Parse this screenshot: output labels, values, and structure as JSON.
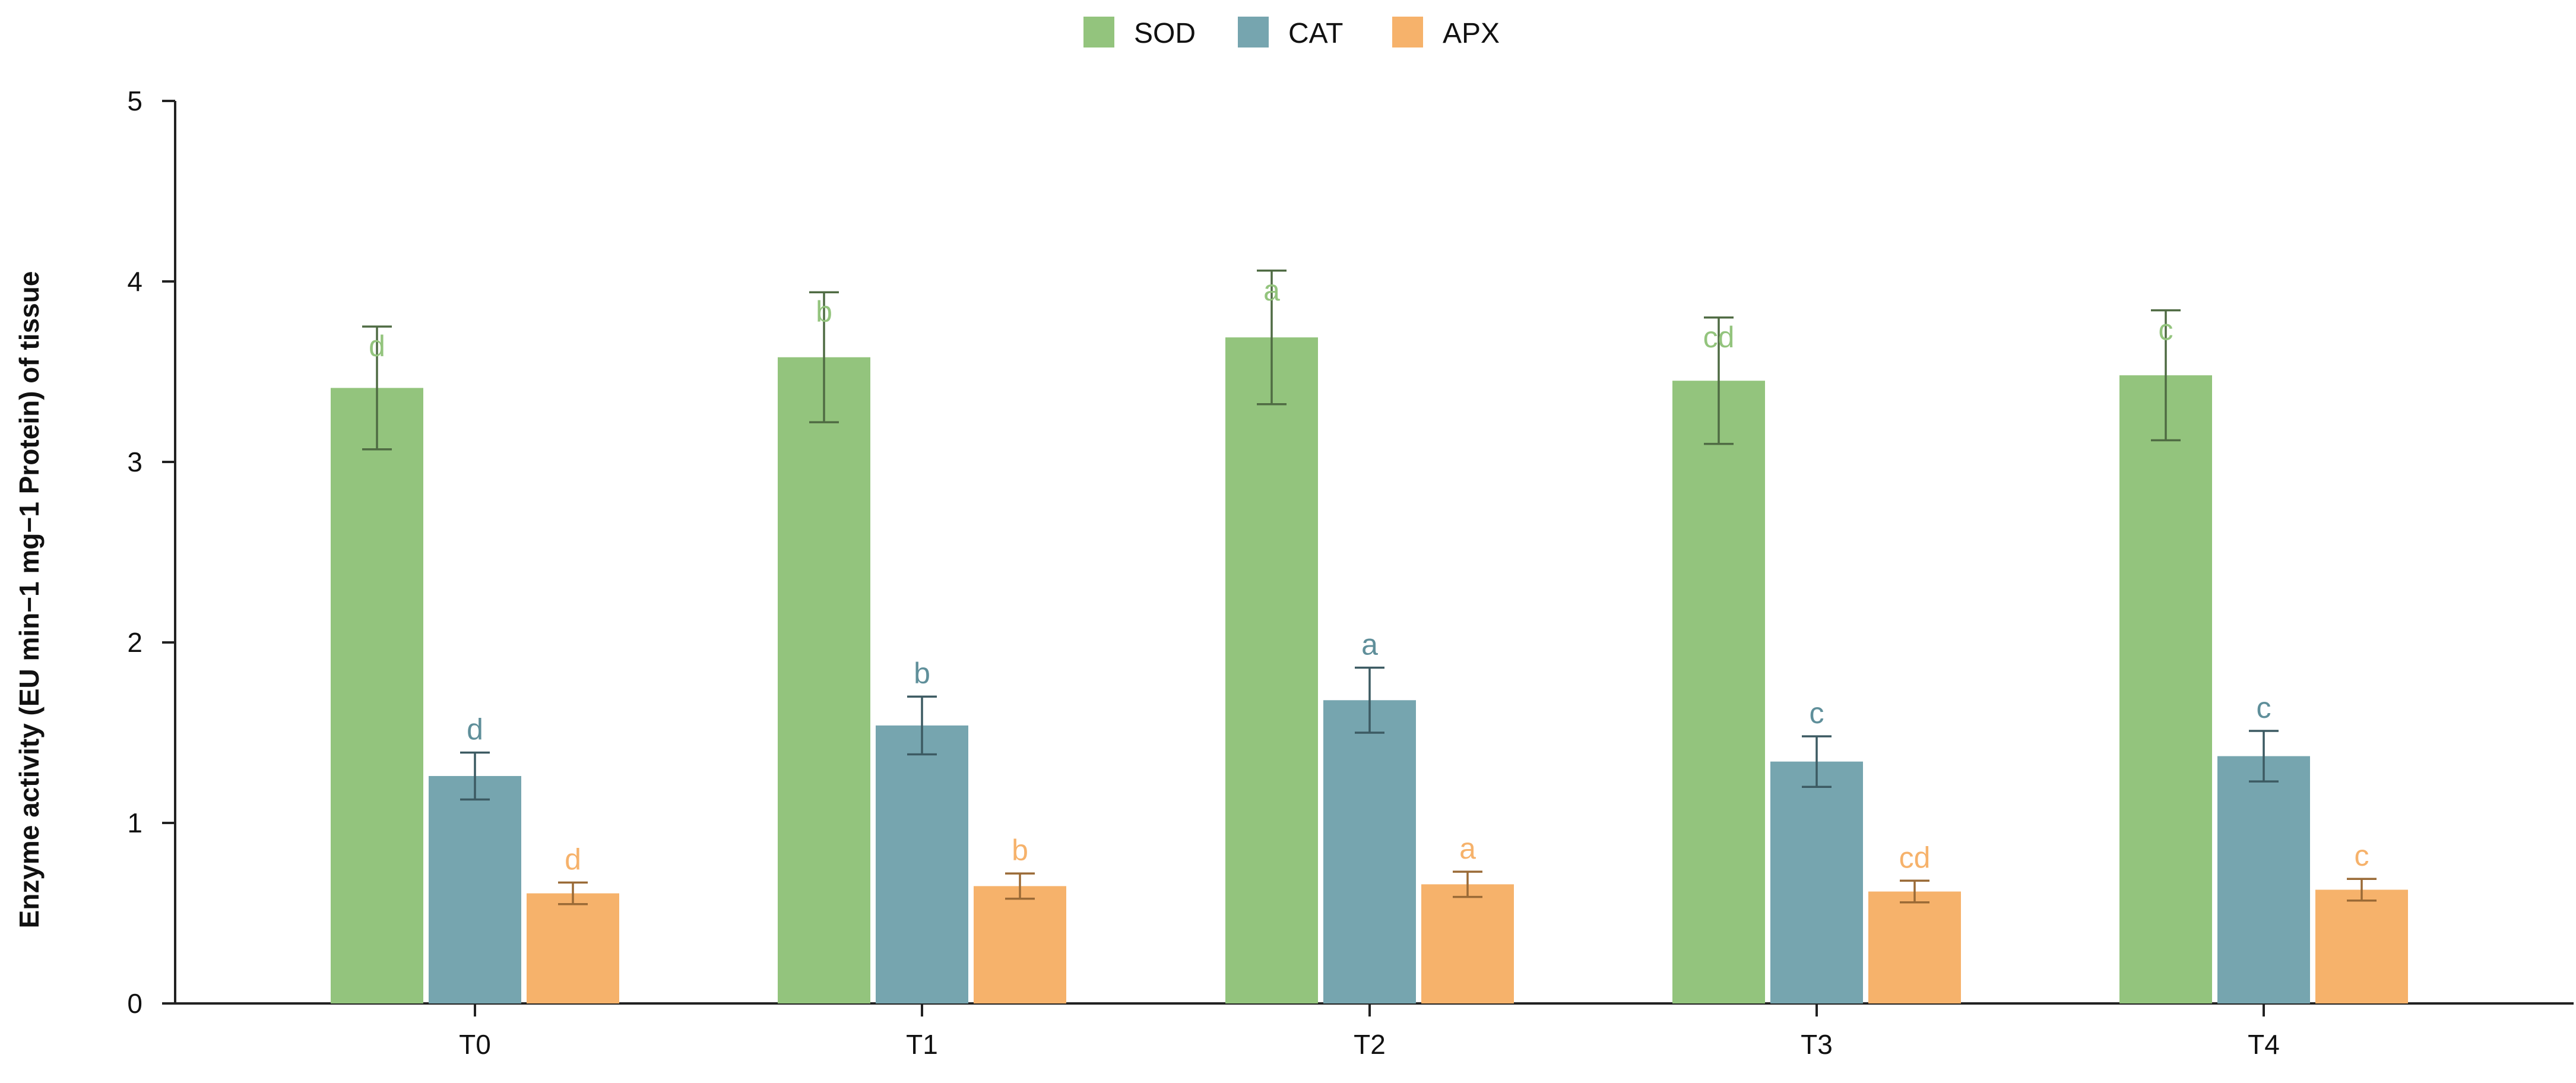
{
  "chart_data": {
    "type": "bar",
    "title": "",
    "xlabel": "",
    "ylabel": "Enzyme activity (EU min−1 mg−1 Protein) of tissue",
    "ylim": [
      0,
      5
    ],
    "yticks": [
      0,
      1,
      2,
      3,
      4,
      5
    ],
    "grid": false,
    "legend_position": "top-center",
    "categories": [
      "T0",
      "T1",
      "T2",
      "T3",
      "T4"
    ],
    "series": [
      {
        "name": "SOD",
        "color": "#93c47d",
        "error_color": "#4f6b43",
        "label_color": "#93c47d",
        "values": [
          3.41,
          3.58,
          3.69,
          3.45,
          3.48
        ],
        "errors": [
          0.34,
          0.36,
          0.37,
          0.35,
          0.36
        ],
        "significance": [
          "d",
          "b",
          "a",
          "cd",
          "c"
        ]
      },
      {
        "name": "CAT",
        "color": "#76a5af",
        "error_color": "#3c5a62",
        "label_color": "#5f8f9a",
        "values": [
          1.26,
          1.54,
          1.68,
          1.34,
          1.37
        ],
        "errors": [
          0.13,
          0.16,
          0.18,
          0.14,
          0.14
        ],
        "significance": [
          "d",
          "b",
          "a",
          "c",
          "c"
        ]
      },
      {
        "name": "APX",
        "color": "#f6b26b",
        "error_color": "#9a6a36",
        "label_color": "#f6b26b",
        "values": [
          0.61,
          0.65,
          0.66,
          0.62,
          0.63
        ],
        "errors": [
          0.06,
          0.07,
          0.07,
          0.06,
          0.06
        ],
        "significance": [
          "d",
          "b",
          "a",
          "cd",
          "c"
        ]
      }
    ]
  }
}
